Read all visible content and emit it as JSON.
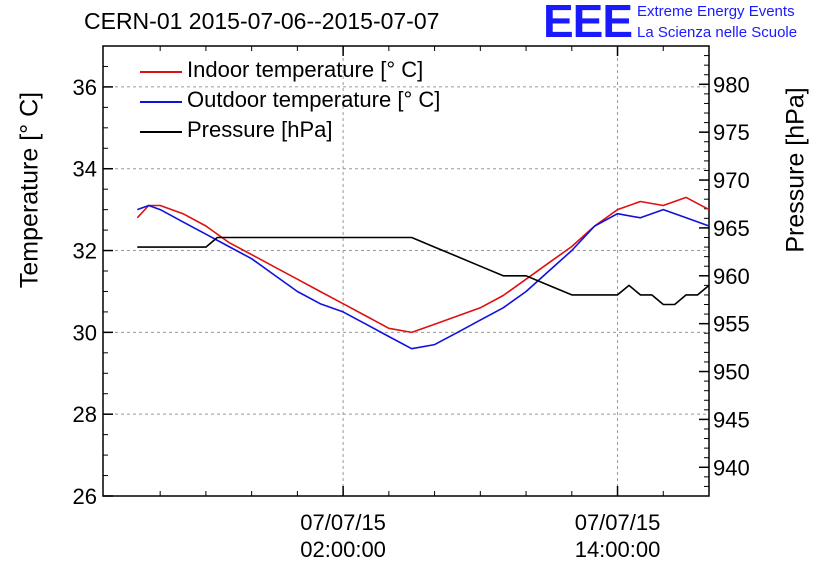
{
  "header": {
    "title": "CERN-01 2015-07-06--2015-07-07",
    "logo": "EEE",
    "org_line1": "Extreme Energy Events",
    "org_line2": "La Scienza nelle Scuole"
  },
  "chart_data": {
    "type": "line",
    "ylabel_left": "Temperature [° C]",
    "ylabel_right": "Pressure [hPa]",
    "ylim_left": [
      26,
      37
    ],
    "ylim_right": [
      937,
      984
    ],
    "xlim_hours": [
      -8.5,
      18
    ],
    "left_ticks": [
      26,
      28,
      30,
      32,
      34,
      36
    ],
    "right_ticks": [
      940,
      945,
      950,
      955,
      960,
      965,
      970,
      975,
      980
    ],
    "x_ticks": [
      {
        "hour": 2,
        "line1": "07/07/15",
        "line2": "02:00:00"
      },
      {
        "hour": 14,
        "line1": "07/07/15",
        "line2": "14:00:00"
      }
    ],
    "grid": true,
    "legend_position": "top-left",
    "series": [
      {
        "name": "Indoor temperature [° C]",
        "color": "#dd1111",
        "axis": "left",
        "x": [
          -7,
          -6.5,
          -6,
          -5,
          -4,
          -3,
          -2,
          -1,
          0,
          1,
          2,
          3,
          4,
          5,
          6,
          7,
          8,
          9,
          10,
          11,
          12,
          13,
          14,
          15,
          16,
          17,
          18
        ],
        "y": [
          32.8,
          33.1,
          33.1,
          32.9,
          32.6,
          32.2,
          31.9,
          31.6,
          31.3,
          31.0,
          30.7,
          30.4,
          30.1,
          30.0,
          30.2,
          30.4,
          30.6,
          30.9,
          31.3,
          31.7,
          32.1,
          32.6,
          33.0,
          33.2,
          33.1,
          33.3,
          33.0
        ]
      },
      {
        "name": "Outdoor temperature [° C]",
        "color": "#1111dd",
        "axis": "left",
        "x": [
          -7,
          -6.5,
          -6,
          -5,
          -4,
          -3,
          -2,
          -1,
          0,
          1,
          2,
          3,
          4,
          5,
          6,
          7,
          8,
          9,
          10,
          11,
          12,
          13,
          14,
          15,
          16,
          17,
          18
        ],
        "y": [
          33.0,
          33.1,
          33.0,
          32.7,
          32.4,
          32.1,
          31.8,
          31.4,
          31.0,
          30.7,
          30.5,
          30.2,
          29.9,
          29.6,
          29.7,
          30.0,
          30.3,
          30.6,
          31.0,
          31.5,
          32.0,
          32.6,
          32.9,
          32.8,
          33.0,
          32.8,
          32.6
        ]
      },
      {
        "name": "Pressure [hPa]",
        "color": "#000000",
        "axis": "right",
        "x": [
          -7,
          -4,
          -3.5,
          -2,
          0,
          3,
          5,
          6,
          7,
          8,
          9,
          10,
          11,
          12,
          13,
          13.5,
          14,
          14.5,
          15,
          15.5,
          16,
          16.5,
          17,
          17.5,
          18
        ],
        "y": [
          963,
          963,
          964,
          964,
          964,
          964,
          964,
          963,
          962,
          961,
          960,
          960,
          959,
          958,
          958,
          958,
          958,
          959,
          958,
          958,
          957,
          957,
          958,
          958,
          959
        ]
      }
    ]
  }
}
